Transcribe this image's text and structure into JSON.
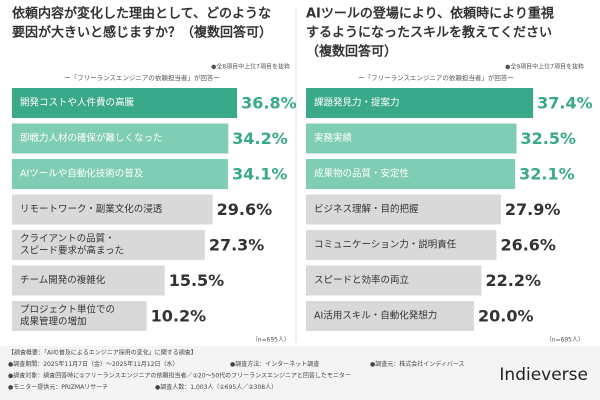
{
  "chart_data": [
    {
      "type": "bar",
      "orientation": "horizontal",
      "title": [
        "依頼内容が変化した理由として、どのような",
        "要因が大きいと感じますか？（複数回答可）"
      ],
      "note": "●全8項目中上位7項目を抜粋",
      "subtitle": "ー「フリーランスエンジニアの依頼担当者」が回答ー",
      "sample": "（n=695人）",
      "categories": [
        [
          "開発コストや人件費の高騰"
        ],
        [
          "即戦力人材の確保が難しくなった"
        ],
        [
          "AIツールや自動化技術の普及"
        ],
        [
          "リモートワーク・副業文化の浸透"
        ],
        [
          "クライアントの品質・",
          "スピード要求が高まった"
        ],
        [
          "チーム開発の複雑化"
        ],
        [
          "プロジェクト単位での",
          "成果管理の増加"
        ]
      ],
      "values": [
        36.8,
        34.2,
        34.1,
        29.6,
        27.3,
        15.5,
        10.2
      ],
      "value_labels": [
        "36.8%",
        "34.2%",
        "34.1%",
        "29.6%",
        "27.3%",
        "15.5%",
        "10.2%"
      ],
      "colors": [
        "#3aa98a",
        "#7fcdb5",
        "#7fcdb5",
        "#d9d9d9",
        "#d9d9d9",
        "#d9d9d9",
        "#d9d9d9"
      ],
      "base_color": "#d9d9d9",
      "highlight_color": "#3aa98a"
    },
    {
      "type": "bar",
      "orientation": "horizontal",
      "title": [
        "AIツールの登場により、依頼時により重視",
        "するようになったスキルを教えてください",
        "（複数回答可）"
      ],
      "note": "●全9項目中上位7項目を抜粋",
      "subtitle": "ー「フリーランスエンジニアの依頼担当者」が回答ー",
      "sample": "（n=695人）",
      "categories": [
        [
          "課題発見力・提案力"
        ],
        [
          "実務実績"
        ],
        [
          "成果物の品質・安定性"
        ],
        [
          "ビジネス理解・目的把握"
        ],
        [
          "コミュニケーション力・説明責任"
        ],
        [
          "スピードと効率の両立"
        ],
        [
          "AI活用スキル・自動化発想力"
        ]
      ],
      "values": [
        37.4,
        32.5,
        32.1,
        27.9,
        26.6,
        22.2,
        20.0
      ],
      "value_labels": [
        "37.4%",
        "32.5%",
        "32.1%",
        "27.9%",
        "26.6%",
        "22.2%",
        "20.0%"
      ],
      "colors": [
        "#3aa98a",
        "#7fcdb5",
        "#7fcdb5",
        "#d9d9d9",
        "#d9d9d9",
        "#d9d9d9",
        "#d9d9d9"
      ],
      "base_color": "#d9d9d9",
      "highlight_color": "#3aa98a"
    }
  ],
  "footer": {
    "lines": [
      [
        "【調査概要：「AIの普及によるエンジニア採用の変化」に関する調査】"
      ],
      [
        "●調査期間：2025年11月7日（金）〜2025年11月12日（水）",
        "●調査方法：インターネット調査",
        "●調査元：株式会社インディバース"
      ],
      [
        "●調査対象：調査回答時に①フリーランスエンジニアの依頼担当者／②20〜50代のフリーランスエンジニアと回答したモニター"
      ],
      [
        "●モニター提供元：PRIZMAリサーチ",
        "●調査人数：1,003人（①695人／②308人）"
      ]
    ],
    "logo": "Indieverse"
  }
}
